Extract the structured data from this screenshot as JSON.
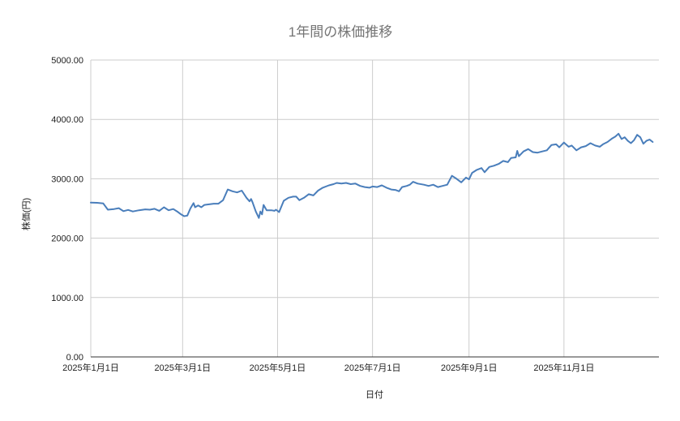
{
  "chart_data": {
    "type": "line",
    "title": "1年間の株価推移",
    "xlabel": "日付",
    "ylabel": "株価(円)",
    "ylim": [
      0,
      5000
    ],
    "xlim": [
      "2025-01-01",
      "2025-12-31"
    ],
    "grid": true,
    "legend": "none",
    "y_ticks": [
      "0.00",
      "1000.00",
      "2000.00",
      "3000.00",
      "4000.00",
      "5000.00"
    ],
    "x_ticks": [
      {
        "date": "2025-01-01",
        "label": "2025年1月1日"
      },
      {
        "date": "2025-03-01",
        "label": "2025年3月1日"
      },
      {
        "date": "2025-05-01",
        "label": "2025年5月1日"
      },
      {
        "date": "2025-07-01",
        "label": "2025年7月1日"
      },
      {
        "date": "2025-09-01",
        "label": "2025年9月1日"
      },
      {
        "date": "2025-11-01",
        "label": "2025年11月1日"
      }
    ],
    "series": [
      {
        "name": "株価(円)",
        "color": "#4a7ebb",
        "points": [
          [
            "2025-01-01",
            2600
          ],
          [
            "2025-01-05",
            2595
          ],
          [
            "2025-01-09",
            2585
          ],
          [
            "2025-01-12",
            2480
          ],
          [
            "2025-01-16",
            2490
          ],
          [
            "2025-01-19",
            2505
          ],
          [
            "2025-01-22",
            2455
          ],
          [
            "2025-01-25",
            2475
          ],
          [
            "2025-01-28",
            2450
          ],
          [
            "2025-02-01",
            2470
          ],
          [
            "2025-02-05",
            2485
          ],
          [
            "2025-02-08",
            2480
          ],
          [
            "2025-02-11",
            2495
          ],
          [
            "2025-02-14",
            2460
          ],
          [
            "2025-02-17",
            2520
          ],
          [
            "2025-02-20",
            2470
          ],
          [
            "2025-02-23",
            2490
          ],
          [
            "2025-02-26",
            2440
          ],
          [
            "2025-02-28",
            2400
          ],
          [
            "2025-03-02",
            2370
          ],
          [
            "2025-03-04",
            2380
          ],
          [
            "2025-03-06",
            2500
          ],
          [
            "2025-03-08",
            2590
          ],
          [
            "2025-03-09",
            2520
          ],
          [
            "2025-03-11",
            2550
          ],
          [
            "2025-03-13",
            2520
          ],
          [
            "2025-03-15",
            2560
          ],
          [
            "2025-03-18",
            2570
          ],
          [
            "2025-03-21",
            2580
          ],
          [
            "2025-03-24",
            2580
          ],
          [
            "2025-03-27",
            2640
          ],
          [
            "2025-03-30",
            2820
          ],
          [
            "2025-04-02",
            2790
          ],
          [
            "2025-04-05",
            2770
          ],
          [
            "2025-04-08",
            2800
          ],
          [
            "2025-04-11",
            2680
          ],
          [
            "2025-04-13",
            2620
          ],
          [
            "2025-04-14",
            2660
          ],
          [
            "2025-04-15",
            2600
          ],
          [
            "2025-04-17",
            2450
          ],
          [
            "2025-04-19",
            2340
          ],
          [
            "2025-04-20",
            2450
          ],
          [
            "2025-04-21",
            2400
          ],
          [
            "2025-04-22",
            2560
          ],
          [
            "2025-04-24",
            2470
          ],
          [
            "2025-04-27",
            2470
          ],
          [
            "2025-04-29",
            2460
          ],
          [
            "2025-04-30",
            2480
          ],
          [
            "2025-05-02",
            2440
          ],
          [
            "2025-05-05",
            2630
          ],
          [
            "2025-05-08",
            2680
          ],
          [
            "2025-05-11",
            2700
          ],
          [
            "2025-05-13",
            2700
          ],
          [
            "2025-05-15",
            2640
          ],
          [
            "2025-05-18",
            2680
          ],
          [
            "2025-05-21",
            2740
          ],
          [
            "2025-05-24",
            2720
          ],
          [
            "2025-05-27",
            2800
          ],
          [
            "2025-05-30",
            2850
          ],
          [
            "2025-06-03",
            2890
          ],
          [
            "2025-06-06",
            2910
          ],
          [
            "2025-06-08",
            2930
          ],
          [
            "2025-06-11",
            2920
          ],
          [
            "2025-06-14",
            2930
          ],
          [
            "2025-06-17",
            2910
          ],
          [
            "2025-06-20",
            2920
          ],
          [
            "2025-06-23",
            2880
          ],
          [
            "2025-06-26",
            2860
          ],
          [
            "2025-06-29",
            2850
          ],
          [
            "2025-07-01",
            2870
          ],
          [
            "2025-07-04",
            2860
          ],
          [
            "2025-07-07",
            2890
          ],
          [
            "2025-07-10",
            2850
          ],
          [
            "2025-07-13",
            2820
          ],
          [
            "2025-07-16",
            2810
          ],
          [
            "2025-07-18",
            2790
          ],
          [
            "2025-07-20",
            2860
          ],
          [
            "2025-07-23",
            2880
          ],
          [
            "2025-07-25",
            2900
          ],
          [
            "2025-07-27",
            2950
          ],
          [
            "2025-07-30",
            2920
          ],
          [
            "2025-08-03",
            2900
          ],
          [
            "2025-08-06",
            2880
          ],
          [
            "2025-08-09",
            2900
          ],
          [
            "2025-08-12",
            2860
          ],
          [
            "2025-08-15",
            2880
          ],
          [
            "2025-08-18",
            2900
          ],
          [
            "2025-08-21",
            3050
          ],
          [
            "2025-08-24",
            3000
          ],
          [
            "2025-08-27",
            2940
          ],
          [
            "2025-08-30",
            3020
          ],
          [
            "2025-09-01",
            2990
          ],
          [
            "2025-09-03",
            3100
          ],
          [
            "2025-09-06",
            3150
          ],
          [
            "2025-09-09",
            3180
          ],
          [
            "2025-09-11",
            3110
          ],
          [
            "2025-09-14",
            3200
          ],
          [
            "2025-09-17",
            3220
          ],
          [
            "2025-09-20",
            3250
          ],
          [
            "2025-09-23",
            3300
          ],
          [
            "2025-09-26",
            3280
          ],
          [
            "2025-09-28",
            3350
          ],
          [
            "2025-10-01",
            3360
          ],
          [
            "2025-10-02",
            3470
          ],
          [
            "2025-10-03",
            3380
          ],
          [
            "2025-10-06",
            3460
          ],
          [
            "2025-10-09",
            3500
          ],
          [
            "2025-10-12",
            3450
          ],
          [
            "2025-10-15",
            3440
          ],
          [
            "2025-10-18",
            3460
          ],
          [
            "2025-10-21",
            3480
          ],
          [
            "2025-10-24",
            3570
          ],
          [
            "2025-10-27",
            3580
          ],
          [
            "2025-10-29",
            3530
          ],
          [
            "2025-11-01",
            3610
          ],
          [
            "2025-11-04",
            3540
          ],
          [
            "2025-11-06",
            3560
          ],
          [
            "2025-11-09",
            3480
          ],
          [
            "2025-11-12",
            3530
          ],
          [
            "2025-11-15",
            3550
          ],
          [
            "2025-11-18",
            3600
          ],
          [
            "2025-11-21",
            3560
          ],
          [
            "2025-11-24",
            3540
          ],
          [
            "2025-11-26",
            3580
          ],
          [
            "2025-11-29",
            3620
          ],
          [
            "2025-12-02",
            3680
          ],
          [
            "2025-12-04",
            3710
          ],
          [
            "2025-12-06",
            3760
          ],
          [
            "2025-12-08",
            3670
          ],
          [
            "2025-12-10",
            3700
          ],
          [
            "2025-12-12",
            3640
          ],
          [
            "2025-12-14",
            3600
          ],
          [
            "2025-12-16",
            3650
          ],
          [
            "2025-12-18",
            3740
          ],
          [
            "2025-12-20",
            3700
          ],
          [
            "2025-12-22",
            3590
          ],
          [
            "2025-12-24",
            3640
          ],
          [
            "2025-12-26",
            3660
          ],
          [
            "2025-12-28",
            3620
          ]
        ]
      }
    ]
  }
}
